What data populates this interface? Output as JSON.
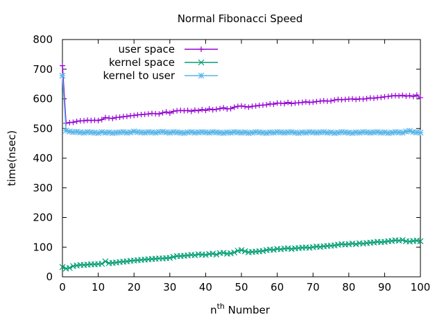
{
  "chart_data": {
    "type": "line",
    "title": "Normal Fibonacci Speed",
    "xlabel": "n",
    "xlabel_superscript": "th",
    "xlabel_suffix": " Number",
    "ylabel": "time(nsec)",
    "xlim": [
      0,
      100
    ],
    "ylim": [
      0,
      800
    ],
    "x_ticks": [
      0,
      10,
      20,
      30,
      40,
      50,
      60,
      70,
      80,
      90,
      100
    ],
    "y_ticks": [
      0,
      100,
      200,
      300,
      400,
      500,
      600,
      700,
      800
    ],
    "grid": false,
    "legend_position": "top-left",
    "x": [
      0,
      1,
      2,
      3,
      4,
      5,
      6,
      7,
      8,
      9,
      10,
      11,
      12,
      13,
      14,
      15,
      16,
      17,
      18,
      19,
      20,
      21,
      22,
      23,
      24,
      25,
      26,
      27,
      28,
      29,
      30,
      31,
      32,
      33,
      34,
      35,
      36,
      37,
      38,
      39,
      40,
      41,
      42,
      43,
      44,
      45,
      46,
      47,
      48,
      49,
      50,
      51,
      52,
      53,
      54,
      55,
      56,
      57,
      58,
      59,
      60,
      61,
      62,
      63,
      64,
      65,
      66,
      67,
      68,
      69,
      70,
      71,
      72,
      73,
      74,
      75,
      76,
      77,
      78,
      79,
      80,
      81,
      82,
      83,
      84,
      85,
      86,
      87,
      88,
      89,
      90,
      91,
      92,
      93,
      94,
      95,
      96,
      97,
      98,
      99,
      100
    ],
    "series": [
      {
        "name": "user space",
        "color": "#9400d3",
        "marker": "plus",
        "values": [
          712,
          518,
          520,
          521,
          524,
          526,
          526,
          528,
          527,
          528,
          527,
          530,
          537,
          535,
          534,
          537,
          538,
          540,
          541,
          543,
          544,
          546,
          547,
          548,
          549,
          551,
          550,
          549,
          553,
          556,
          552,
          558,
          560,
          561,
          560,
          561,
          558,
          562,
          560,
          564,
          561,
          566,
          563,
          565,
          567,
          570,
          566,
          567,
          572,
          575,
          576,
          574,
          572,
          575,
          576,
          578,
          579,
          580,
          583,
          582,
          586,
          585,
          584,
          588,
          584,
          586,
          587,
          588,
          590,
          588,
          589,
          591,
          592,
          594,
          592,
          593,
          596,
          598,
          597,
          598,
          599,
          600,
          598,
          600,
          599,
          601,
          603,
          602,
          604,
          605,
          607,
          608,
          610,
          611,
          610,
          612,
          609,
          611,
          608,
          613,
          604
        ]
      },
      {
        "name": "kernel space",
        "color": "#009e73",
        "marker": "x",
        "values": [
          33,
          28,
          30,
          36,
          38,
          40,
          40,
          41,
          42,
          42,
          43,
          44,
          52,
          46,
          47,
          48,
          50,
          51,
          52,
          54,
          55,
          56,
          57,
          58,
          59,
          60,
          61,
          62,
          62,
          63,
          64,
          67,
          70,
          70,
          71,
          72,
          74,
          73,
          76,
          75,
          74,
          77,
          78,
          75,
          80,
          81,
          78,
          79,
          82,
          88,
          90,
          86,
          83,
          84,
          85,
          86,
          87,
          90,
          92,
          91,
          94,
          93,
          95,
          96,
          94,
          96,
          97,
          98,
          99,
          98,
          100,
          102,
          101,
          103,
          104,
          105,
          106,
          108,
          110,
          109,
          110,
          112,
          110,
          113,
          112,
          114,
          115,
          116,
          118,
          117,
          118,
          120,
          121,
          123,
          122,
          124,
          120,
          119,
          121,
          122,
          120
        ]
      },
      {
        "name": "kernel to user",
        "color": "#56b4e9",
        "marker": "asterisk",
        "values": [
          678,
          493,
          490,
          488,
          489,
          487,
          486,
          488,
          487,
          486,
          485,
          488,
          486,
          487,
          485,
          486,
          487,
          488,
          486,
          487,
          490,
          488,
          487,
          486,
          488,
          487,
          486,
          488,
          489,
          487,
          486,
          488,
          487,
          486,
          485,
          487,
          488,
          486,
          487,
          488,
          487,
          486,
          488,
          487,
          486,
          485,
          487,
          486,
          488,
          487,
          486,
          487,
          485,
          486,
          488,
          487,
          486,
          485,
          487,
          486,
          488,
          487,
          486,
          487,
          488,
          486,
          485,
          487,
          486,
          488,
          487,
          486,
          487,
          488,
          486,
          487,
          485,
          486,
          488,
          487,
          486,
          485,
          487,
          486,
          488,
          487,
          486,
          487,
          488,
          486,
          487,
          485,
          486,
          488,
          487,
          486,
          490,
          492,
          488,
          487,
          486
        ]
      }
    ]
  }
}
